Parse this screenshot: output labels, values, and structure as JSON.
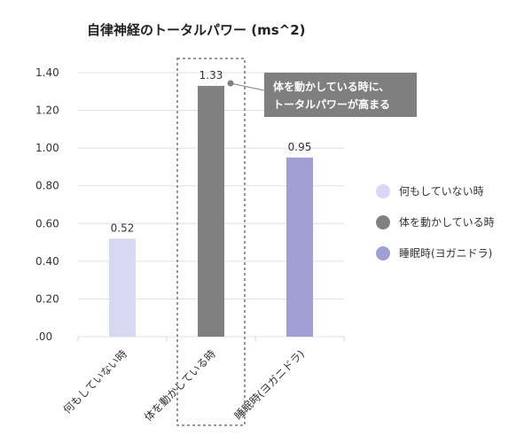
{
  "chart_data": {
    "type": "bar",
    "title": "自律神経のトータルパワー (ms^2)",
    "categories": [
      "何もしていない時",
      "体を動かしている時",
      "睡眠時(ヨガニドラ)"
    ],
    "values": [
      0.52,
      1.33,
      0.95
    ],
    "value_labels": [
      "0.52",
      "1.33",
      "0.95"
    ],
    "colors": [
      "#d8d8f2",
      "#808080",
      "#9f9fd4"
    ],
    "ylim": [
      0,
      1.4
    ],
    "yticks": [
      0,
      0.2,
      0.4,
      0.6,
      0.8,
      1.0,
      1.2,
      1.4
    ],
    "ytick_labels": [
      ".00",
      "0.20",
      "0.40",
      "0.60",
      "0.80",
      "1.00",
      "1.20",
      "1.40"
    ],
    "grid": true,
    "xlabel": "",
    "ylabel": "",
    "legend": {
      "position": "right",
      "entries": [
        "何もしていない時",
        "体を動かしている時",
        "睡眠時(ヨガニドラ)"
      ]
    },
    "highlight_index": 1,
    "annotation": {
      "lines": [
        "体を動かしている時に、",
        "トータルパワーが高まる"
      ],
      "background": "#7f7f7f"
    }
  }
}
